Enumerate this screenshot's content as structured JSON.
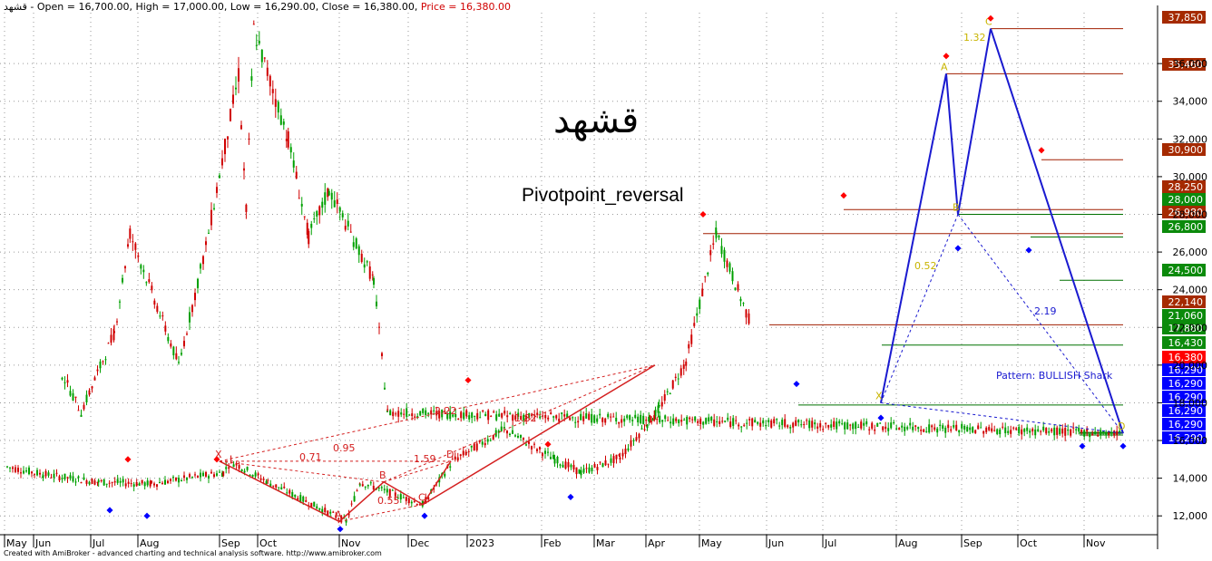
{
  "header": {
    "symbol": "قشهد",
    "ohlc_text": " - Open = 16,700.00, High = 17,000.00, Low = 16,290.00, Close = 16,380.00, ",
    "price_text": "Price = 16,380.00"
  },
  "overlay": {
    "title": "قشهد",
    "indicator": "Pivotpoint_reversal"
  },
  "footer": "Created with AmiBroker - advanced charting and technical analysis software. http://www.amibroker.com",
  "colors": {
    "up_bar": "#00a000",
    "down_bar": "#d00000",
    "pattern_blue": "#1a1ad0",
    "pattern_red": "#d42020",
    "level_red": "#a01e00",
    "level_green": "#007000",
    "pivot_low": "#0000ff",
    "pivot_high": "#ff0000"
  },
  "chart_data": {
    "type": "candlestick",
    "xlabel": "",
    "ylabel": "",
    "x_labels": [
      "May",
      "Jun",
      "Jul",
      "Aug",
      "Sep",
      "Oct",
      "Nov",
      "Dec",
      "2023",
      "Feb",
      "Mar",
      "Apr",
      "May",
      "Jun",
      "Jul",
      "Aug",
      "Sep",
      "Oct",
      "Nov"
    ],
    "y_ticks": [
      "12,000",
      "14,000",
      "16,000",
      "18,000",
      "20,000",
      "22,000",
      "24,000",
      "26,000",
      "28,000",
      "30,000",
      "32,000",
      "34,000",
      "36,000"
    ],
    "ylim": [
      11000,
      38700
    ],
    "price_path": [
      [
        "May",
        14600
      ],
      [
        "Jun",
        14200
      ],
      [
        "Jul",
        13800
      ],
      [
        "Aug",
        13700
      ],
      [
        "Sep",
        14300
      ],
      [
        "Sep",
        14900
      ],
      [
        "Oct",
        13800
      ],
      [
        "Nov",
        11700
      ],
      [
        "Nov",
        13800
      ],
      [
        "Dec",
        12600
      ],
      [
        "Dec",
        14900
      ],
      [
        "2023",
        16600
      ],
      [
        "Feb",
        15000
      ],
      [
        "Feb",
        14300
      ],
      [
        "Mar",
        15100
      ],
      [
        "Apr",
        17700
      ],
      [
        "Apr",
        20200
      ],
      [
        "May",
        27000
      ],
      [
        "May",
        22300
      ],
      [
        "Jun",
        19500
      ],
      [
        "Jun",
        17500
      ],
      [
        "Jul",
        21700
      ],
      [
        "Jul",
        27000
      ],
      [
        "Aug",
        20000
      ],
      [
        "Aug",
        26300
      ],
      [
        "Sep",
        35400
      ],
      [
        "Sep",
        28200
      ],
      [
        "Sep",
        37800
      ],
      [
        "Oct",
        32000
      ],
      [
        "Oct",
        26800
      ],
      [
        "Oct",
        29300
      ],
      [
        "Nov",
        24500
      ],
      [
        "Nov",
        17500
      ],
      [
        "Nov",
        16380
      ]
    ],
    "price_levels": [
      {
        "label": "37,850",
        "value": 37850,
        "style": "red"
      },
      {
        "label": "35,460",
        "value": 35460,
        "style": "red"
      },
      {
        "label": "30,900",
        "value": 30900,
        "style": "red"
      },
      {
        "label": "28,250",
        "value": 28250,
        "style": "red"
      },
      {
        "label": "28,000",
        "value": 28000,
        "style": "green"
      },
      {
        "label": "26,980",
        "value": 26980,
        "style": "red"
      },
      {
        "label": "26,800",
        "value": 26800,
        "style": "green"
      },
      {
        "label": "24,500",
        "value": 24500,
        "style": "green"
      },
      {
        "label": "22,140",
        "value": 22140,
        "style": "red"
      },
      {
        "label": "21,060",
        "value": 21060,
        "style": "green"
      },
      {
        "label": "17,880",
        "value": 17880,
        "style": "green"
      },
      {
        "label": "16,430",
        "value": 16430,
        "style": "green"
      },
      {
        "label": "16,380",
        "value": 16380,
        "style": "price"
      },
      {
        "label": "16,290",
        "value": 16290,
        "style": "blue"
      },
      {
        "label": "16,290",
        "value": 16290,
        "style": "blue"
      },
      {
        "label": "16,290",
        "value": 16290,
        "style": "blue"
      },
      {
        "label": "16,290",
        "value": 16290,
        "style": "blue"
      },
      {
        "label": "16,290",
        "value": 16290,
        "style": "blue"
      },
      {
        "label": "16,290",
        "value": 16290,
        "style": "blue"
      }
    ],
    "pattern_blue": {
      "name": "Pattern: BULLISH Shark",
      "points": [
        {
          "label": "X",
          "month": "Jul",
          "value": 18000
        },
        {
          "label": "A",
          "month": "Sep",
          "value": 35460
        },
        {
          "label": "B",
          "month": "Sep",
          "value": 28000
        },
        {
          "label": "C",
          "month": "Sep",
          "value": 37850
        },
        {
          "label": "D",
          "month": "Nov",
          "value": 16380
        }
      ],
      "ratios": [
        "0.52",
        "1.32",
        "2.19"
      ]
    },
    "pattern_red": {
      "points": [
        {
          "label": "X",
          "month": "Sep",
          "value": 14900
        },
        {
          "label": "A",
          "month": "Nov",
          "value": 11700
        },
        {
          "label": "B",
          "month": "Nov",
          "value": 13800
        },
        {
          "label": "C",
          "month": "Dec",
          "value": 12600
        },
        {
          "label": "D",
          "month": "Dec",
          "value": 14900
        }
      ],
      "ratios": [
        "0.71",
        "0.95",
        "1.59",
        "0.55",
        "2.22",
        "1.82"
      ]
    }
  }
}
